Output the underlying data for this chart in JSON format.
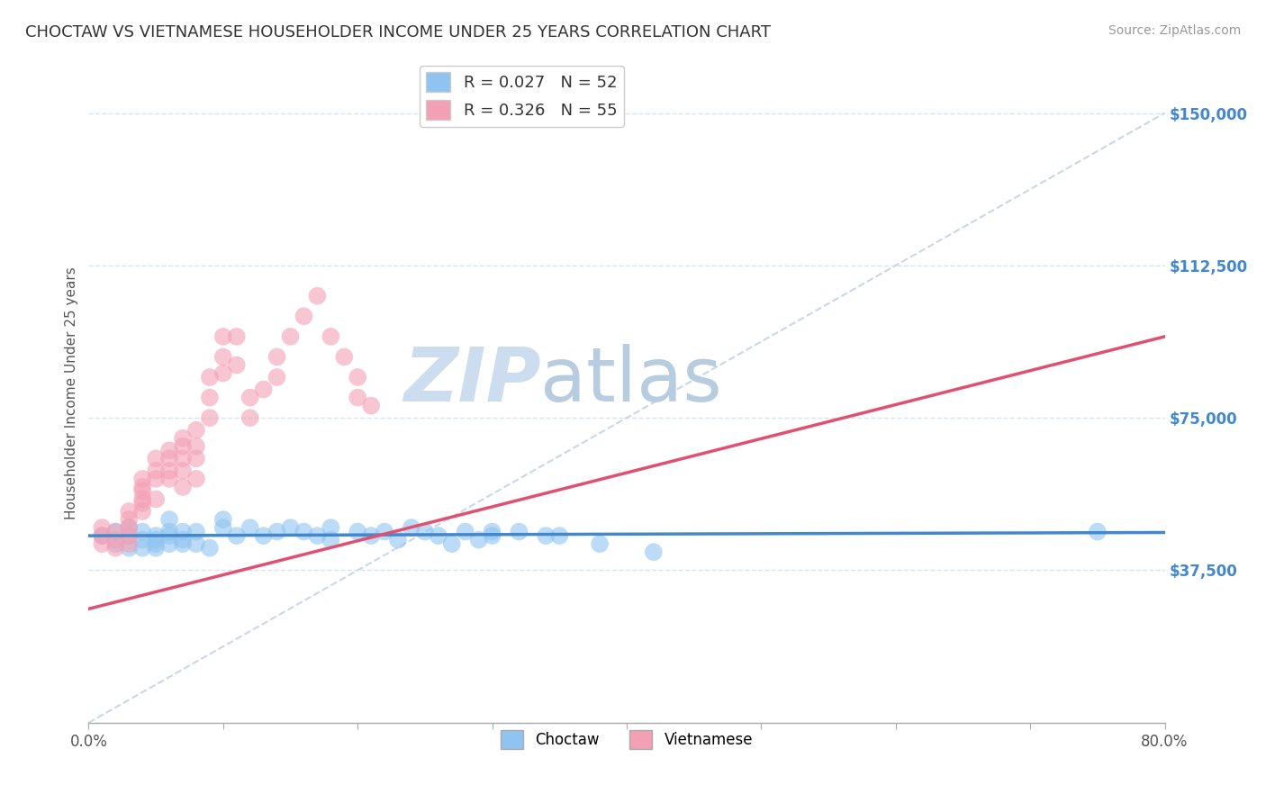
{
  "title": "CHOCTAW VS VIETNAMESE HOUSEHOLDER INCOME UNDER 25 YEARS CORRELATION CHART",
  "source": "Source: ZipAtlas.com",
  "ylabel": "Householder Income Under 25 years",
  "xlim": [
    0.0,
    0.8
  ],
  "ylim": [
    0,
    162000
  ],
  "plot_ylim": [
    0,
    150000
  ],
  "choctaw_R": 0.027,
  "choctaw_N": 52,
  "vietnamese_R": 0.326,
  "vietnamese_N": 55,
  "choctaw_color": "#90c4f0",
  "vietnamese_color": "#f4a0b4",
  "choctaw_line_color": "#4488cc",
  "vietnamese_line_color": "#e05070",
  "diag_line_color": "#c8d8e8",
  "watermark_color": "#d4e4f0",
  "background_color": "#ffffff",
  "grid_color": "#d8e4ee",
  "ylabel_vals": [
    37500,
    75000,
    112500,
    150000
  ],
  "ylabel_ticks": [
    "$37,500",
    "$75,000",
    "$112,500",
    "$150,000"
  ],
  "choctaw_x": [
    0.01,
    0.02,
    0.02,
    0.03,
    0.03,
    0.03,
    0.04,
    0.04,
    0.04,
    0.05,
    0.05,
    0.05,
    0.05,
    0.06,
    0.06,
    0.06,
    0.06,
    0.07,
    0.07,
    0.07,
    0.08,
    0.08,
    0.09,
    0.1,
    0.1,
    0.11,
    0.12,
    0.13,
    0.14,
    0.15,
    0.16,
    0.17,
    0.18,
    0.18,
    0.2,
    0.21,
    0.22,
    0.23,
    0.24,
    0.25,
    0.26,
    0.27,
    0.28,
    0.29,
    0.3,
    0.3,
    0.32,
    0.34,
    0.35,
    0.38,
    0.42,
    0.75
  ],
  "choctaw_y": [
    46000,
    44000,
    47000,
    43000,
    46000,
    48000,
    45000,
    43000,
    47000,
    44000,
    46000,
    43000,
    45000,
    50000,
    47000,
    44000,
    46000,
    47000,
    44000,
    45000,
    47000,
    44000,
    43000,
    50000,
    48000,
    46000,
    48000,
    46000,
    47000,
    48000,
    47000,
    46000,
    48000,
    45000,
    47000,
    46000,
    47000,
    45000,
    48000,
    47000,
    46000,
    44000,
    47000,
    45000,
    47000,
    46000,
    47000,
    46000,
    46000,
    44000,
    42000,
    47000
  ],
  "vietnamese_x": [
    0.01,
    0.01,
    0.01,
    0.02,
    0.02,
    0.02,
    0.03,
    0.03,
    0.03,
    0.03,
    0.03,
    0.04,
    0.04,
    0.04,
    0.04,
    0.04,
    0.04,
    0.05,
    0.05,
    0.05,
    0.05,
    0.06,
    0.06,
    0.06,
    0.06,
    0.07,
    0.07,
    0.07,
    0.07,
    0.07,
    0.08,
    0.08,
    0.08,
    0.08,
    0.09,
    0.09,
    0.09,
    0.1,
    0.1,
    0.1,
    0.11,
    0.11,
    0.12,
    0.12,
    0.13,
    0.14,
    0.14,
    0.15,
    0.16,
    0.17,
    0.18,
    0.19,
    0.2,
    0.2,
    0.21
  ],
  "vietnamese_y": [
    44000,
    46000,
    48000,
    45000,
    47000,
    43000,
    46000,
    50000,
    44000,
    48000,
    52000,
    55000,
    58000,
    54000,
    57000,
    52000,
    60000,
    62000,
    65000,
    55000,
    60000,
    62000,
    65000,
    60000,
    67000,
    68000,
    62000,
    65000,
    70000,
    58000,
    65000,
    60000,
    68000,
    72000,
    80000,
    75000,
    85000,
    90000,
    95000,
    86000,
    95000,
    88000,
    75000,
    80000,
    82000,
    90000,
    85000,
    95000,
    100000,
    105000,
    95000,
    90000,
    80000,
    85000,
    78000
  ]
}
